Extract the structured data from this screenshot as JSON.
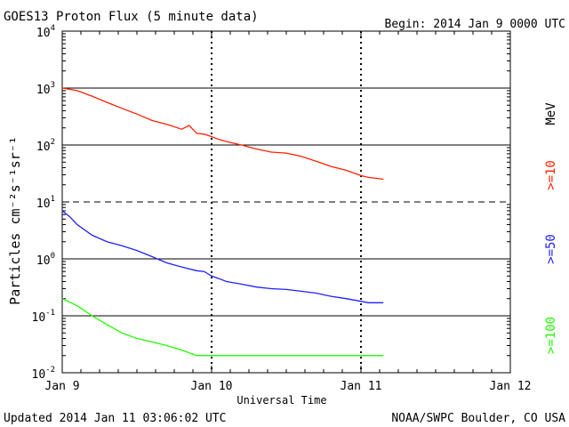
{
  "chart_data": {
    "type": "line",
    "title": "GOES13 Proton Flux (5 minute data)",
    "begin_label": "Begin: 2014 Jan 9 0000 UTC",
    "xlabel": "Universal Time",
    "ylabel": "Particles cm⁻²s⁻¹sr⁻¹",
    "footer_left": "Updated 2014 Jan 11 03:06:02 UTC",
    "footer_right": "NOAA/SWPC Boulder, CO USA",
    "y_scale": "log",
    "ylim": [
      0.01,
      10000
    ],
    "xlim_days": [
      0,
      3
    ],
    "x_ticks": [
      {
        "day": 0,
        "label": "Jan 9"
      },
      {
        "day": 1,
        "label": "Jan 10"
      },
      {
        "day": 2,
        "label": "Jan 11"
      },
      {
        "day": 3,
        "label": "Jan 12"
      }
    ],
    "y_ticks": [
      {
        "value": 0.01,
        "base": "10",
        "exp": "-2"
      },
      {
        "value": 0.1,
        "base": "10",
        "exp": "-1"
      },
      {
        "value": 1,
        "base": "10",
        "exp": "0"
      },
      {
        "value": 10,
        "base": "10",
        "exp": "1"
      },
      {
        "value": 100,
        "base": "10",
        "exp": "2"
      },
      {
        "value": 1000,
        "base": "10",
        "exp": "3"
      },
      {
        "value": 10000,
        "base": "10",
        "exp": "4"
      }
    ],
    "thresholds": [
      {
        "value": 1000,
        "style": "solid"
      },
      {
        "value": 100,
        "style": "solid"
      },
      {
        "value": 10,
        "style": "dashed"
      },
      {
        "value": 1,
        "style": "solid"
      },
      {
        "value": 0.1,
        "style": "solid"
      }
    ],
    "legend": {
      "unit": "MeV",
      "entries": [
        {
          "label": ">=10",
          "color": "#ff2000"
        },
        {
          "label": ">=50",
          "color": "#2020ff"
        },
        {
          "label": ">=100",
          "color": "#20ff00"
        }
      ]
    },
    "series": [
      {
        "name": ">=10",
        "color": "#ff2000",
        "x_days": [
          0,
          0.05,
          0.1,
          0.2,
          0.3,
          0.4,
          0.5,
          0.6,
          0.7,
          0.8,
          0.85,
          0.9,
          0.95,
          1.0,
          1.05,
          1.1,
          1.2,
          1.3,
          1.4,
          1.5,
          1.6,
          1.7,
          1.8,
          1.9,
          2.0,
          2.05,
          2.1,
          2.15
        ],
        "values": [
          1000,
          950,
          900,
          720,
          560,
          440,
          350,
          270,
          230,
          190,
          220,
          160,
          155,
          140,
          125,
          115,
          100,
          85,
          75,
          72,
          63,
          52,
          42,
          36,
          29,
          27,
          26,
          25
        ]
      },
      {
        "name": ">=50",
        "color": "#2020ff",
        "x_days": [
          0,
          0.05,
          0.1,
          0.2,
          0.3,
          0.4,
          0.5,
          0.6,
          0.7,
          0.8,
          0.9,
          0.95,
          1.0,
          1.05,
          1.1,
          1.2,
          1.3,
          1.4,
          1.5,
          1.6,
          1.7,
          1.8,
          1.9,
          1.95,
          2.0,
          2.05,
          2.1,
          2.15
        ],
        "values": [
          7,
          5.5,
          4,
          2.6,
          2.0,
          1.7,
          1.4,
          1.1,
          0.85,
          0.72,
          0.62,
          0.6,
          0.5,
          0.45,
          0.4,
          0.36,
          0.32,
          0.3,
          0.29,
          0.27,
          0.25,
          0.22,
          0.2,
          0.19,
          0.18,
          0.17,
          0.17,
          0.17
        ]
      },
      {
        "name": ">=100",
        "color": "#20ff00",
        "x_days": [
          0,
          0.1,
          0.2,
          0.3,
          0.4,
          0.5,
          0.6,
          0.7,
          0.8,
          0.9,
          0.95,
          1.0,
          1.1,
          1.2,
          1.3,
          1.4,
          1.5,
          1.6,
          1.7,
          1.8,
          1.9,
          1.95,
          2.0,
          2.05,
          2.1,
          2.15
        ],
        "values": [
          0.2,
          0.15,
          0.1,
          0.07,
          0.05,
          0.04,
          0.035,
          0.03,
          0.025,
          0.02,
          0.02,
          0.02,
          0.02,
          0.02,
          0.02,
          0.02,
          0.02,
          0.02,
          0.02,
          0.02,
          0.02,
          0.02,
          0.02,
          0.02,
          0.02,
          0.02
        ]
      }
    ]
  }
}
